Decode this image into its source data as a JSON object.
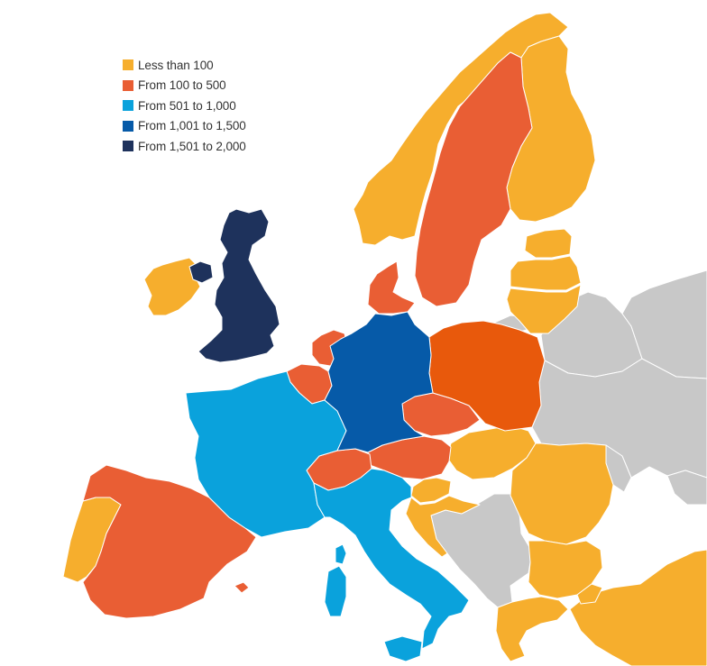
{
  "colors": {
    "less_than_100": "#F6AE2D",
    "100_to_500": "#E95E34",
    "501_to_1000": "#0AA2DC",
    "1001_to_1500": "#065AA8",
    "1501_to_2000": "#1E325C",
    "no_data": "#C8C8C8",
    "poland": "#E8590C"
  },
  "legend": {
    "items": [
      {
        "label": "Less than 100",
        "color": "#F6AE2D"
      },
      {
        "label": "From 100 to 500",
        "color": "#E95E34"
      },
      {
        "label": "From 501 to 1,000",
        "color": "#0AA2DC"
      },
      {
        "label": "From 1,001 to 1,500",
        "color": "#065AA8"
      },
      {
        "label": "From 1,501 to 2,000",
        "color": "#1E325C"
      }
    ]
  }
}
